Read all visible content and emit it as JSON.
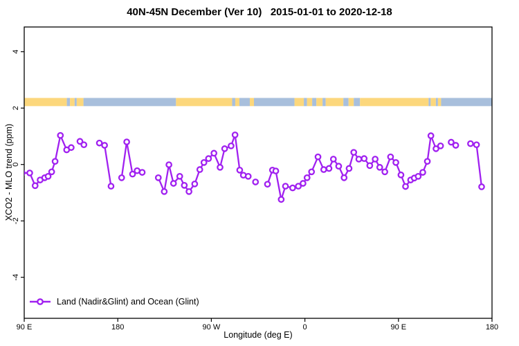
{
  "title": "40N-45N December (Ver 10)   2015-01-01 to 2020-12-18",
  "chart_data": {
    "type": "line",
    "title": "40N-45N December (Ver 10)   2015-01-01 to 2020-12-18",
    "xlabel": "Longitude (deg E)",
    "ylabel": "XCO2 - MLO trend (ppm)",
    "x_axis": {
      "range": [
        90,
        540
      ],
      "ticks": [
        {
          "pos": 90,
          "label": "90 E"
        },
        {
          "pos": 180,
          "label": "180"
        },
        {
          "pos": 270,
          "label": "90 W"
        },
        {
          "pos": 360,
          "label": "0"
        },
        {
          "pos": 450,
          "label": "90 E"
        },
        {
          "pos": 540,
          "label": "180"
        }
      ]
    },
    "y_axis": {
      "range": [
        -5.3,
        4.9
      ],
      "ticks": [
        {
          "pos": 4,
          "label": "4"
        },
        {
          "pos": 2,
          "label": "2"
        },
        {
          "pos": 0,
          "label": "0"
        },
        {
          "pos": -2,
          "label": "-2"
        },
        {
          "pos": -4,
          "label": "-4"
        }
      ]
    },
    "grid": "off",
    "legend": {
      "label": "Land (Nadir&Glint) and Ocean (Glint)",
      "position": "bottom-left"
    },
    "colors": {
      "series": "#A020F0",
      "land": "#FCD77C",
      "ocean": "#A8BFDC",
      "axis": "#000000"
    },
    "coast_band": {
      "value_low": 2.07,
      "value_high": 2.36,
      "segments": [
        {
          "from": 90,
          "to": 131,
          "type": "land"
        },
        {
          "from": 131,
          "to": 134,
          "type": "ocean"
        },
        {
          "from": 134,
          "to": 138.5,
          "type": "land"
        },
        {
          "from": 138.5,
          "to": 140.5,
          "type": "ocean"
        },
        {
          "from": 140.5,
          "to": 147,
          "type": "land"
        },
        {
          "from": 147,
          "to": 236,
          "type": "ocean"
        },
        {
          "from": 236,
          "to": 290,
          "type": "land"
        },
        {
          "from": 290,
          "to": 293,
          "type": "ocean"
        },
        {
          "from": 293,
          "to": 297,
          "type": "land"
        },
        {
          "from": 297,
          "to": 307,
          "type": "ocean"
        },
        {
          "from": 307,
          "to": 311,
          "type": "land"
        },
        {
          "from": 311,
          "to": 350,
          "type": "ocean"
        },
        {
          "from": 350,
          "to": 359,
          "type": "land"
        },
        {
          "from": 359,
          "to": 362,
          "type": "ocean"
        },
        {
          "from": 362,
          "to": 367,
          "type": "land"
        },
        {
          "from": 367,
          "to": 371,
          "type": "ocean"
        },
        {
          "from": 371,
          "to": 377,
          "type": "land"
        },
        {
          "from": 377,
          "to": 380,
          "type": "ocean"
        },
        {
          "from": 380,
          "to": 397,
          "type": "land"
        },
        {
          "from": 397,
          "to": 402,
          "type": "ocean"
        },
        {
          "from": 402,
          "to": 407,
          "type": "land"
        },
        {
          "from": 407,
          "to": 413,
          "type": "ocean"
        },
        {
          "from": 413,
          "to": 479,
          "type": "land"
        },
        {
          "from": 479,
          "to": 481,
          "type": "ocean"
        },
        {
          "from": 481,
          "to": 486,
          "type": "land"
        },
        {
          "from": 486,
          "to": 488,
          "type": "ocean"
        },
        {
          "from": 488,
          "to": 491,
          "type": "land"
        },
        {
          "from": 491,
          "to": 540,
          "type": "ocean"
        }
      ]
    },
    "series": [
      {
        "name": "Land (Nadir&Glint) and Ocean (Glint)",
        "marker": "open-circle",
        "segments": [
          [
            [
              88,
              -0.3
            ],
            [
              95.3,
              -0.3
            ],
            [
              100.5,
              -0.75
            ],
            [
              105.3,
              -0.55
            ],
            [
              109.7,
              -0.47
            ],
            [
              113,
              -0.42
            ],
            [
              116.4,
              -0.26
            ],
            [
              119.7,
              0.11
            ],
            [
              124.8,
              1.03
            ],
            [
              130.8,
              0.52
            ],
            [
              135.2,
              0.6
            ]
          ],
          [
            [
              143.6,
              0.82
            ],
            [
              147.4,
              0.7
            ]
          ],
          [
            [
              162.3,
              0.76
            ],
            [
              167.3,
              0.68
            ],
            [
              173.5,
              -0.77
            ]
          ],
          [
            [
              183.7,
              -0.47
            ],
            [
              188.6,
              0.8
            ],
            [
              194.2,
              -0.34
            ],
            [
              198.6,
              -0.22
            ],
            [
              203.5,
              -0.28
            ]
          ],
          [
            [
              219,
              -0.47
            ],
            [
              224.7,
              -0.96
            ],
            [
              229.2,
              -0.01
            ],
            [
              233.6,
              -0.67
            ],
            [
              239.6,
              -0.42
            ],
            [
              244,
              -0.74
            ],
            [
              248.5,
              -0.96
            ],
            [
              254,
              -0.69
            ],
            [
              258.9,
              -0.18
            ],
            [
              262.9,
              0.07
            ],
            [
              267.3,
              0.21
            ],
            [
              272.5,
              0.4
            ],
            [
              278.4,
              -0.1
            ],
            [
              282.8,
              0.56
            ],
            [
              289,
              0.66
            ],
            [
              292.8,
              1.05
            ],
            [
              297.3,
              -0.2
            ],
            [
              300.8,
              -0.38
            ]
          ],
          [
            [
              305.5,
              -0.42
            ]
          ],
          [
            [
              312.5,
              -0.62
            ]
          ],
          [
            [
              324,
              -0.7
            ],
            [
              328.8,
              -0.2
            ],
            [
              332,
              -0.23
            ],
            [
              337.2,
              -1.24
            ],
            [
              341.3,
              -0.77
            ],
            [
              348.2,
              -0.83
            ],
            [
              353.7,
              -0.77
            ],
            [
              358.2,
              -0.67
            ],
            [
              362.1,
              -0.47
            ],
            [
              366.4,
              -0.26
            ],
            [
              372.6,
              0.27
            ],
            [
              378.1,
              -0.18
            ],
            [
              383.2,
              -0.14
            ],
            [
              387.4,
              0.19
            ],
            [
              392.5,
              -0.06
            ],
            [
              397.7,
              -0.47
            ],
            [
              402.5,
              -0.14
            ],
            [
              407,
              0.43
            ],
            [
              411.9,
              0.19
            ],
            [
              417,
              0.21
            ],
            [
              422.4,
              -0.04
            ],
            [
              427.6,
              0.19
            ],
            [
              432,
              -0.1
            ],
            [
              436.9,
              -0.26
            ],
            [
              442.4,
              0.27
            ],
            [
              447.5,
              0.07
            ],
            [
              452.4,
              -0.37
            ],
            [
              456.8,
              -0.78
            ],
            [
              461.7,
              -0.55
            ],
            [
              465.2,
              -0.48
            ],
            [
              469,
              -0.42
            ],
            [
              473.4,
              -0.28
            ],
            [
              477.8,
              0.11
            ],
            [
              481.2,
              1.02
            ],
            [
              486.1,
              0.56
            ],
            [
              490.5,
              0.66
            ]
          ],
          [
            [
              500.7,
              0.79
            ],
            [
              505.1,
              0.68
            ]
          ],
          [
            [
              519.3,
              0.74
            ],
            [
              525.1,
              0.7
            ],
            [
              530,
              -0.79
            ]
          ]
        ]
      }
    ]
  }
}
